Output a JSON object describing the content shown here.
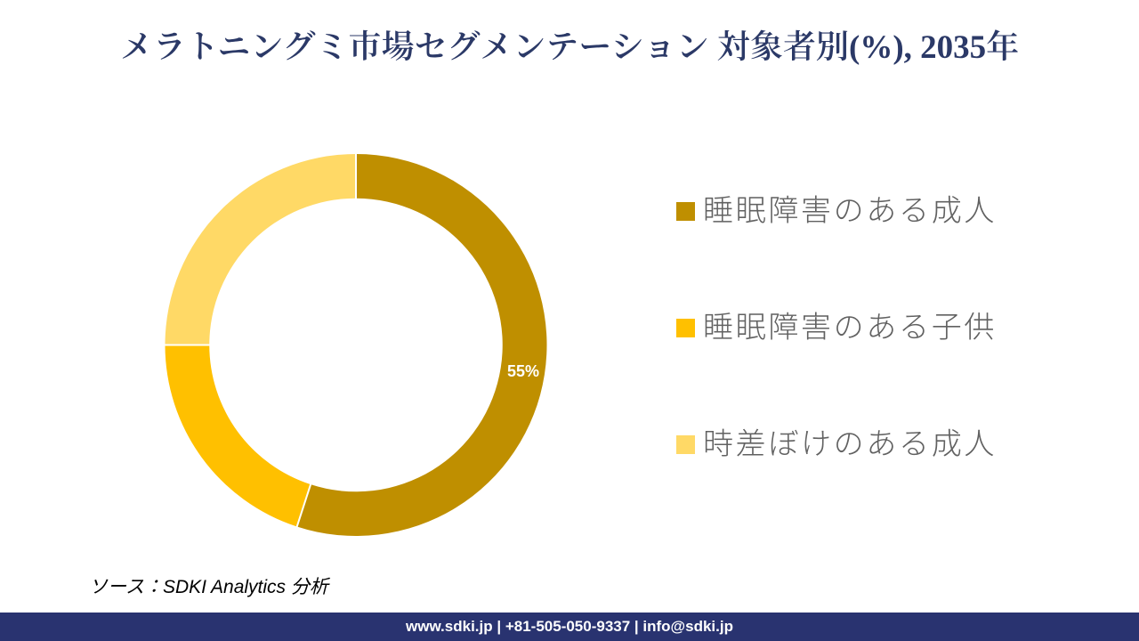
{
  "title": "メラトニングミ市場セグメンテーション 対象者別(%), 2035年",
  "source_note": "ソース：SDKI Analytics 分析",
  "footer": {
    "text": "www.sdki.jp | +81-505-050-9337 | info@sdki.jp",
    "background_color": "#293370"
  },
  "colors": {
    "title": "#2b3967",
    "legend_text": "#616161",
    "background": "#ffffff",
    "separator": "#ffffff"
  },
  "chart_data": {
    "type": "donut",
    "title": "メラトニングミ市場セグメンテーション 対象者別(%), 2035年",
    "unit": "%",
    "start_angle_deg": 0,
    "direction": "clockwise",
    "hole_ratio": 0.77,
    "legend_position": "right",
    "segments": [
      {
        "label": "睡眠障害のある成人",
        "value": 55,
        "color": "#BF8F00",
        "data_label": "55%"
      },
      {
        "label": "睡眠障害のある子供",
        "value": 20,
        "color": "#FFC000",
        "data_label": ""
      },
      {
        "label": "時差ぼけのある成人",
        "value": 25,
        "color": "#FFD966",
        "data_label": ""
      }
    ],
    "data_label_color": "#ffffff"
  }
}
